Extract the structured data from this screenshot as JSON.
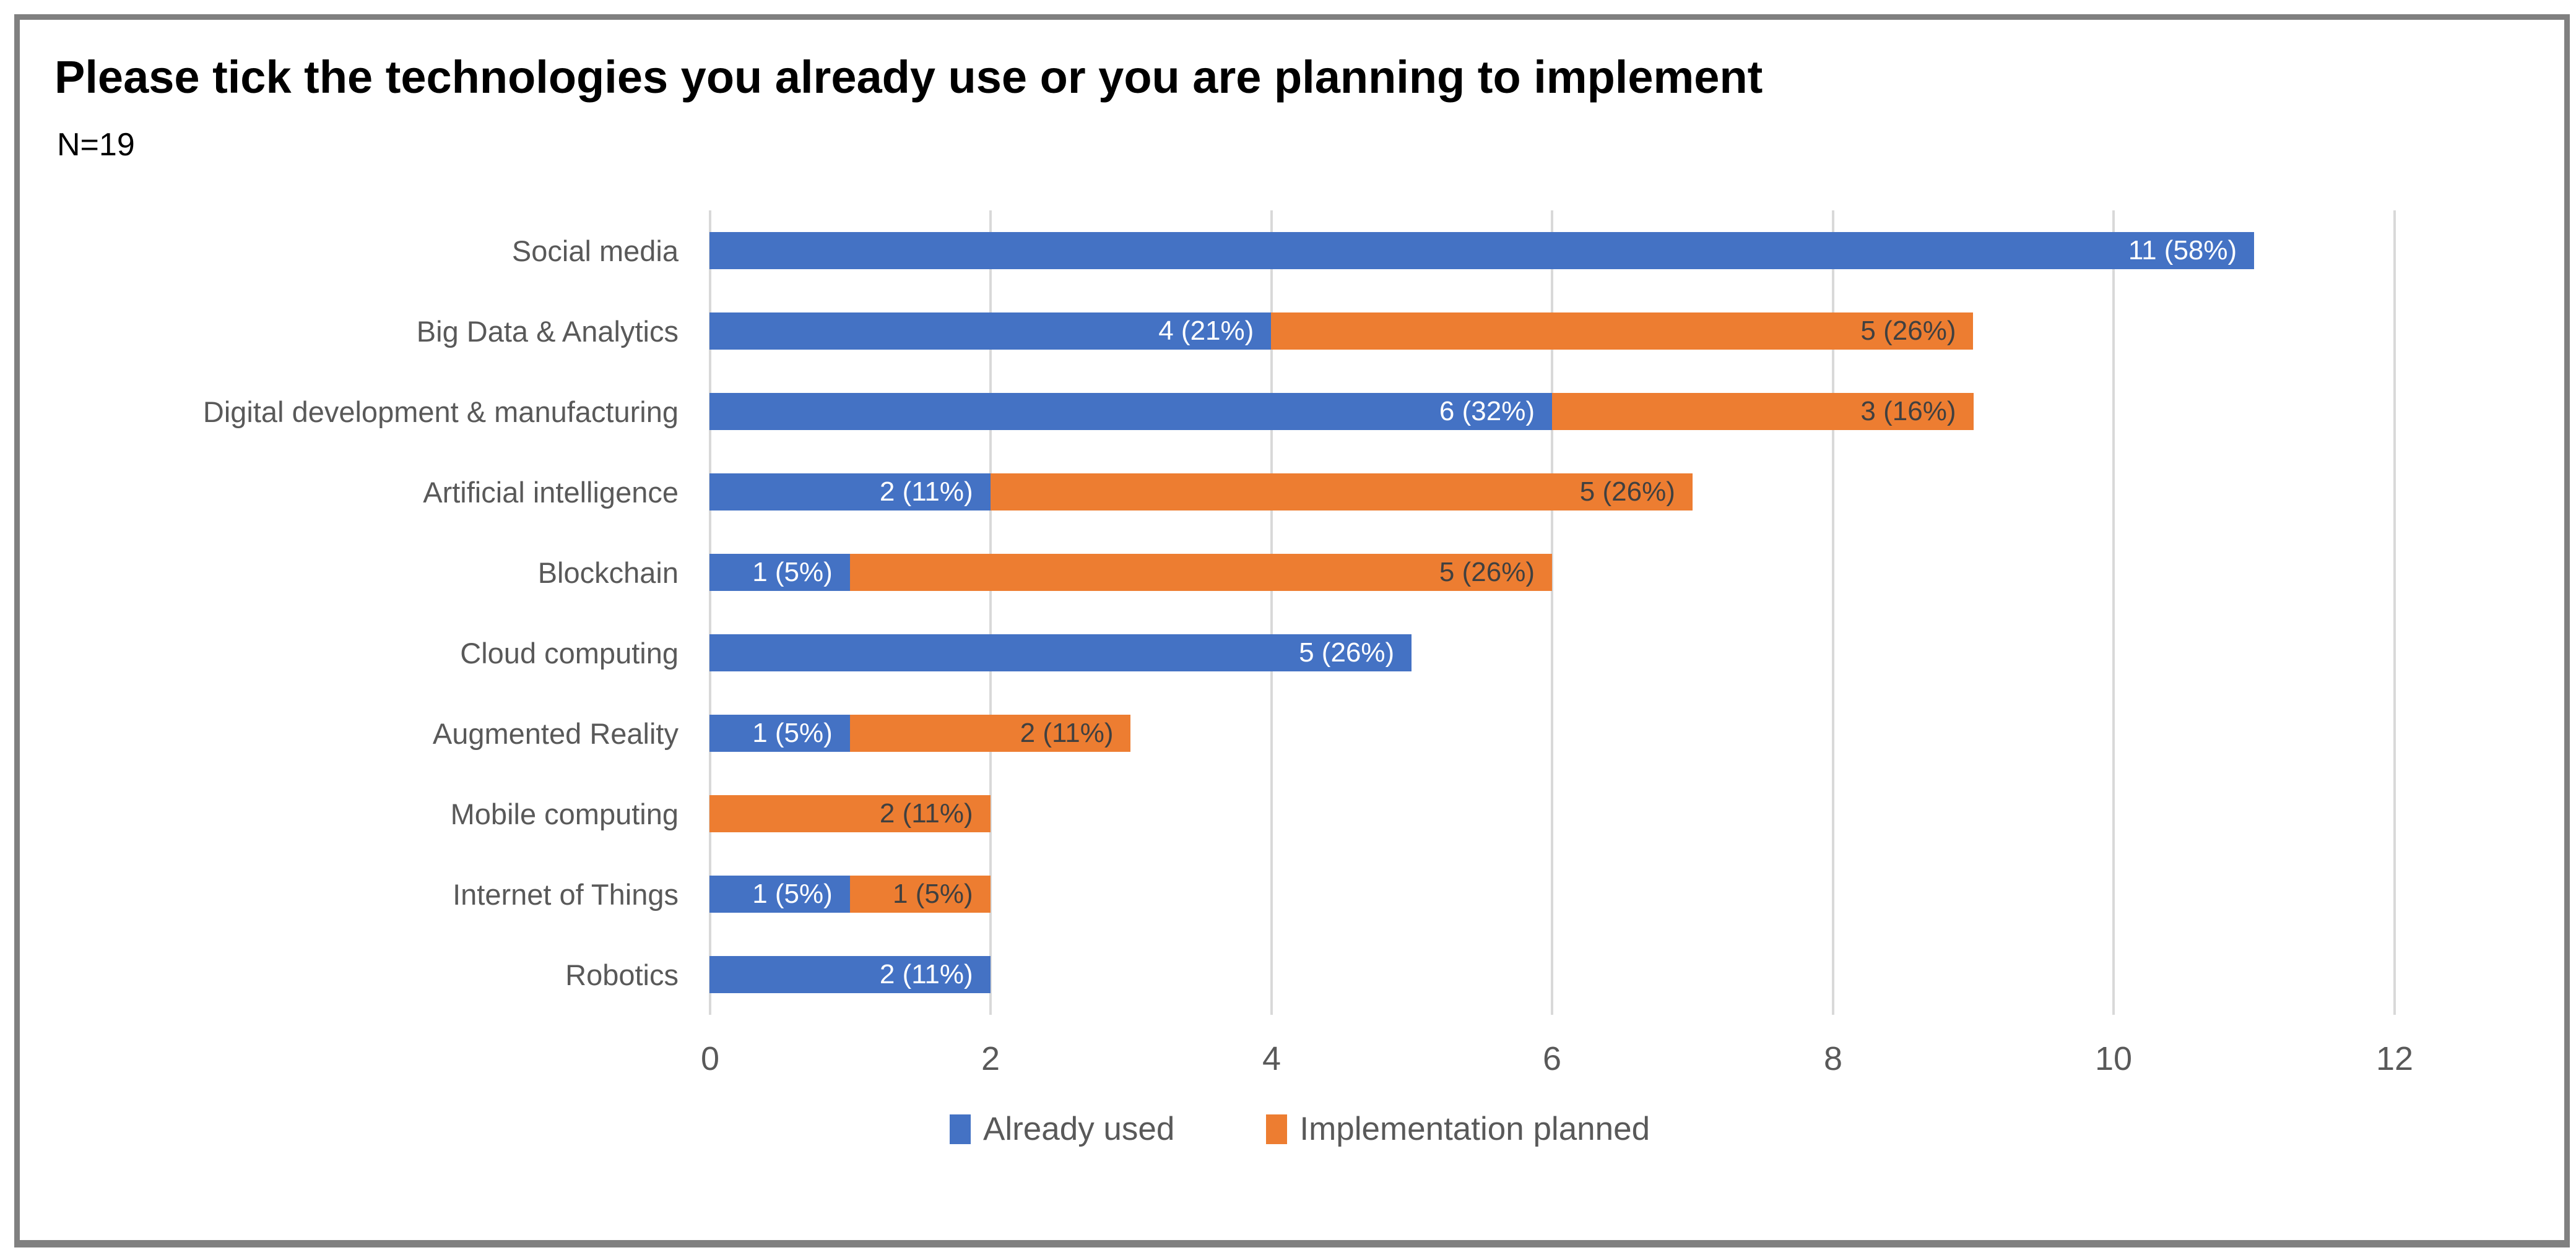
{
  "header": {
    "title": "Please tick the technologies you already use or you are planning to implement",
    "sample_size": "N=19"
  },
  "chart_data": {
    "type": "bar",
    "orientation": "horizontal",
    "stacked": true,
    "title": "Please tick the technologies you already use or you are planning to implement",
    "subtitle": "N=19",
    "categories": [
      "Social media",
      "Big Data & Analytics",
      "Digital development & manufacturing",
      "Artificial intelligence",
      "Blockchain",
      "Cloud computing",
      "Augmented Reality",
      "Mobile computing",
      "Internet of Things",
      "Robotics"
    ],
    "series": [
      {
        "name": "Already used",
        "color": "#4472C4",
        "values": [
          11,
          4,
          6,
          2,
          1,
          5,
          1,
          0,
          1,
          2
        ],
        "labels": [
          "11 (58%)",
          "4 (21%)",
          "6 (32%)",
          "2 (11%)",
          "1 (5%)",
          "5 (26%)",
          "1 (5%)",
          "",
          "1 (5%)",
          "2 (11%)"
        ]
      },
      {
        "name": "Implementation planned",
        "color": "#ED7D31",
        "values": [
          0,
          5,
          3,
          5,
          5,
          0,
          2,
          2,
          1,
          0
        ],
        "labels": [
          "",
          "5 (26%)",
          "3 (16%)",
          "5 (26%)",
          "5 (26%)",
          "",
          "2 (11%)",
          "2 (11%)",
          "1 (5%)",
          ""
        ]
      }
    ],
    "xlim": [
      0,
      12
    ],
    "xticks": [
      "0",
      "2",
      "4",
      "6",
      "8",
      "10",
      "12"
    ],
    "grid": "vertical",
    "gridline_color": "#D9D9D9",
    "frame_color": "#808080",
    "legend_position": "bottom",
    "legend": [
      "Already used",
      "Implementation planned"
    ]
  }
}
